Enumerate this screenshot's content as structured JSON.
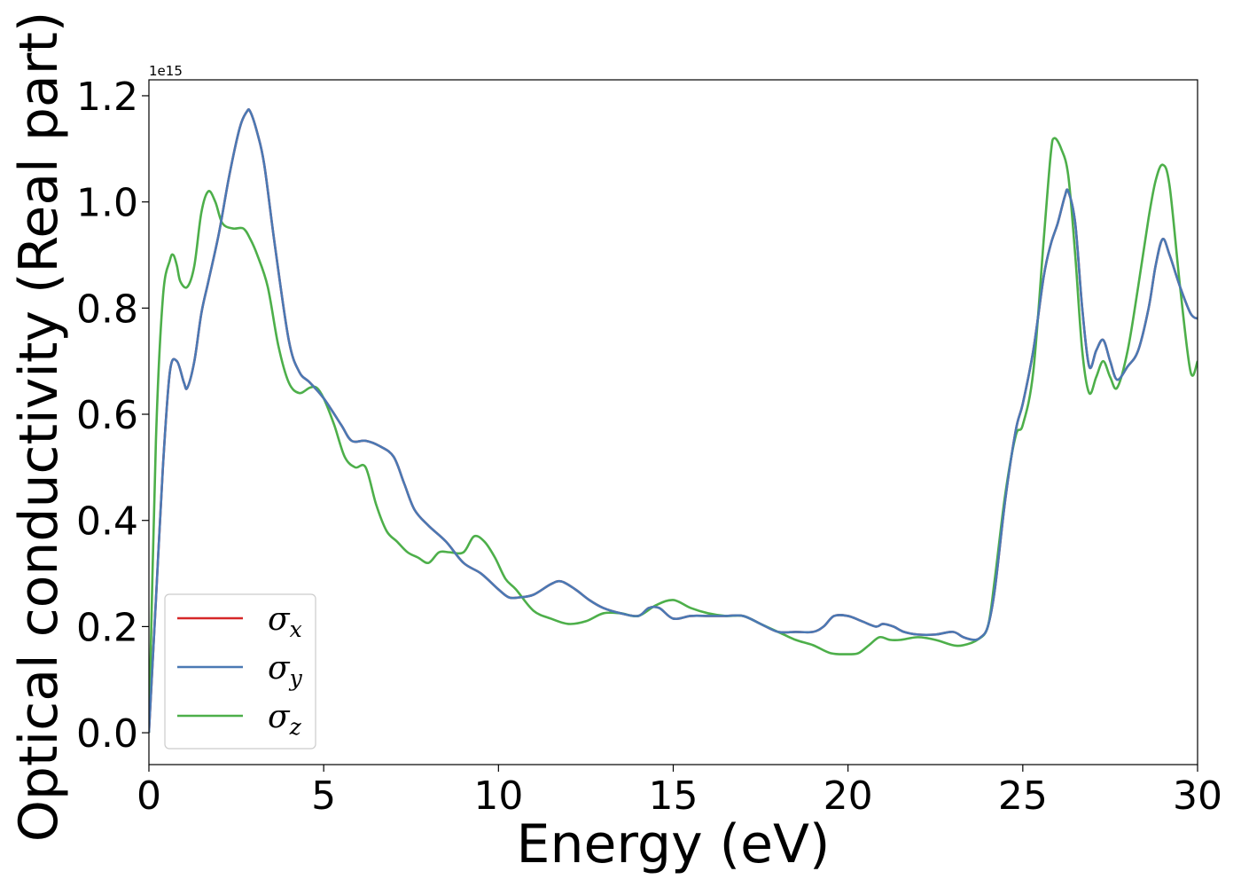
{
  "chart_data": {
    "type": "line",
    "xlabel": "Energy (eV)",
    "ylabel": "Optical conductivity (Real part)",
    "y_offset_text": "1e15",
    "y_scale_factor": 1000000000000000.0,
    "xlim": [
      0,
      30
    ],
    "ylim": [
      -0.06,
      1.23
    ],
    "x_ticks": [
      0,
      5,
      10,
      15,
      20,
      25,
      30
    ],
    "x_tick_labels": [
      "0",
      "5",
      "10",
      "15",
      "20",
      "25",
      "30"
    ],
    "y_ticks": [
      0.0,
      0.2,
      0.4,
      0.6,
      0.8,
      1.0,
      1.2
    ],
    "y_tick_labels": [
      "0.0",
      "0.2",
      "0.4",
      "0.6",
      "0.8",
      "1.0",
      "1.2"
    ],
    "grid": false,
    "legend_position": "lower-left",
    "series": [
      {
        "name": "σx",
        "symbol": "σ",
        "subscript": "x",
        "color": "#d62728",
        "x": [
          0,
          0.2,
          0.4,
          0.6,
          0.8,
          1.0,
          1.1,
          1.3,
          1.5,
          1.7,
          2.0,
          2.3,
          2.6,
          2.8,
          2.9,
          3.1,
          3.3,
          3.6,
          4.0,
          4.3,
          4.6,
          5.0,
          5.5,
          5.8,
          6.2,
          6.6,
          7.0,
          7.3,
          7.6,
          8.0,
          8.5,
          9.0,
          9.5,
          10.0,
          10.3,
          10.6,
          11.0,
          11.5,
          11.8,
          12.2,
          12.6,
          13.0,
          13.5,
          14.0,
          14.3,
          14.6,
          15.0,
          15.5,
          16.0,
          16.5,
          17.0,
          17.5,
          18.0,
          18.5,
          19.0,
          19.3,
          19.6,
          20.0,
          20.4,
          20.8,
          21.0,
          21.3,
          21.6,
          22.0,
          22.5,
          23.0,
          23.3,
          23.6,
          23.8,
          24.0,
          24.2,
          24.5,
          24.8,
          25.0,
          25.3,
          25.6,
          25.8,
          26.0,
          26.2,
          26.3,
          26.5,
          26.7,
          26.9,
          27.1,
          27.3,
          27.5,
          27.7,
          28.0,
          28.3,
          28.6,
          28.8,
          29.0,
          29.2,
          29.5,
          29.8,
          30.0
        ],
        "values": [
          0.0,
          0.25,
          0.5,
          0.68,
          0.7,
          0.66,
          0.65,
          0.7,
          0.79,
          0.85,
          0.94,
          1.05,
          1.14,
          1.17,
          1.17,
          1.13,
          1.07,
          0.92,
          0.74,
          0.68,
          0.66,
          0.63,
          0.58,
          0.55,
          0.55,
          0.54,
          0.52,
          0.47,
          0.42,
          0.39,
          0.36,
          0.32,
          0.3,
          0.27,
          0.255,
          0.255,
          0.26,
          0.28,
          0.285,
          0.27,
          0.25,
          0.235,
          0.225,
          0.22,
          0.235,
          0.235,
          0.215,
          0.22,
          0.22,
          0.22,
          0.22,
          0.205,
          0.19,
          0.19,
          0.19,
          0.2,
          0.22,
          0.22,
          0.21,
          0.2,
          0.205,
          0.2,
          0.19,
          0.185,
          0.185,
          0.19,
          0.18,
          0.175,
          0.18,
          0.2,
          0.27,
          0.44,
          0.57,
          0.62,
          0.72,
          0.86,
          0.92,
          0.96,
          1.01,
          1.02,
          0.96,
          0.8,
          0.69,
          0.72,
          0.74,
          0.7,
          0.665,
          0.69,
          0.72,
          0.8,
          0.88,
          0.93,
          0.9,
          0.84,
          0.79,
          0.78
        ]
      },
      {
        "name": "σy",
        "symbol": "σ",
        "subscript": "y",
        "color": "#4a79b4",
        "x": [
          0,
          0.2,
          0.4,
          0.6,
          0.8,
          1.0,
          1.1,
          1.3,
          1.5,
          1.7,
          2.0,
          2.3,
          2.6,
          2.8,
          2.9,
          3.1,
          3.3,
          3.6,
          4.0,
          4.3,
          4.6,
          5.0,
          5.5,
          5.8,
          6.2,
          6.6,
          7.0,
          7.3,
          7.6,
          8.0,
          8.5,
          9.0,
          9.5,
          10.0,
          10.3,
          10.6,
          11.0,
          11.5,
          11.8,
          12.2,
          12.6,
          13.0,
          13.5,
          14.0,
          14.3,
          14.6,
          15.0,
          15.5,
          16.0,
          16.5,
          17.0,
          17.5,
          18.0,
          18.5,
          19.0,
          19.3,
          19.6,
          20.0,
          20.4,
          20.8,
          21.0,
          21.3,
          21.6,
          22.0,
          22.5,
          23.0,
          23.3,
          23.6,
          23.8,
          24.0,
          24.2,
          24.5,
          24.8,
          25.0,
          25.3,
          25.6,
          25.8,
          26.0,
          26.2,
          26.3,
          26.5,
          26.7,
          26.9,
          27.1,
          27.3,
          27.5,
          27.7,
          28.0,
          28.3,
          28.6,
          28.8,
          29.0,
          29.2,
          29.5,
          29.8,
          30.0
        ],
        "values": [
          0.0,
          0.25,
          0.5,
          0.68,
          0.7,
          0.66,
          0.65,
          0.7,
          0.79,
          0.85,
          0.94,
          1.05,
          1.14,
          1.17,
          1.17,
          1.13,
          1.07,
          0.92,
          0.74,
          0.68,
          0.66,
          0.63,
          0.58,
          0.55,
          0.55,
          0.54,
          0.52,
          0.47,
          0.42,
          0.39,
          0.36,
          0.32,
          0.3,
          0.27,
          0.255,
          0.255,
          0.26,
          0.28,
          0.285,
          0.27,
          0.25,
          0.235,
          0.225,
          0.22,
          0.235,
          0.235,
          0.215,
          0.22,
          0.22,
          0.22,
          0.22,
          0.205,
          0.19,
          0.19,
          0.19,
          0.2,
          0.22,
          0.22,
          0.21,
          0.2,
          0.205,
          0.2,
          0.19,
          0.185,
          0.185,
          0.19,
          0.18,
          0.175,
          0.18,
          0.2,
          0.27,
          0.44,
          0.57,
          0.62,
          0.72,
          0.86,
          0.92,
          0.96,
          1.01,
          1.02,
          0.96,
          0.8,
          0.69,
          0.72,
          0.74,
          0.7,
          0.665,
          0.69,
          0.72,
          0.8,
          0.88,
          0.93,
          0.9,
          0.84,
          0.79,
          0.78
        ]
      },
      {
        "name": "σz",
        "symbol": "σ",
        "subscript": "z",
        "color": "#4daf4a",
        "x": [
          0,
          0.2,
          0.4,
          0.6,
          0.7,
          0.8,
          0.9,
          1.1,
          1.3,
          1.5,
          1.7,
          1.9,
          2.1,
          2.4,
          2.7,
          2.9,
          3.1,
          3.4,
          3.7,
          4.0,
          4.3,
          4.6,
          4.8,
          5.0,
          5.3,
          5.6,
          5.9,
          6.2,
          6.5,
          6.8,
          7.1,
          7.4,
          7.7,
          8.0,
          8.3,
          8.6,
          9.0,
          9.3,
          9.6,
          9.9,
          10.2,
          10.5,
          11.0,
          11.5,
          12.0,
          12.5,
          13.0,
          13.5,
          14.0,
          14.5,
          15.0,
          15.5,
          16.0,
          16.5,
          17.0,
          17.5,
          18.0,
          18.5,
          19.0,
          19.5,
          20.0,
          20.3,
          20.6,
          20.9,
          21.2,
          21.5,
          22.0,
          22.5,
          23.0,
          23.3,
          23.7,
          24.0,
          24.2,
          24.5,
          24.8,
          25.0,
          25.3,
          25.6,
          25.8,
          25.9,
          26.1,
          26.3,
          26.5,
          26.7,
          26.9,
          27.1,
          27.3,
          27.5,
          27.7,
          28.0,
          28.3,
          28.6,
          28.8,
          29.0,
          29.2,
          29.5,
          29.8,
          30.0
        ],
        "values": [
          0.0,
          0.55,
          0.82,
          0.89,
          0.9,
          0.88,
          0.85,
          0.84,
          0.88,
          0.98,
          1.02,
          1.0,
          0.96,
          0.95,
          0.95,
          0.93,
          0.9,
          0.84,
          0.73,
          0.66,
          0.64,
          0.65,
          0.65,
          0.63,
          0.58,
          0.52,
          0.5,
          0.5,
          0.43,
          0.38,
          0.36,
          0.34,
          0.33,
          0.32,
          0.34,
          0.34,
          0.34,
          0.37,
          0.36,
          0.33,
          0.29,
          0.27,
          0.23,
          0.215,
          0.205,
          0.21,
          0.225,
          0.225,
          0.22,
          0.24,
          0.25,
          0.235,
          0.225,
          0.22,
          0.22,
          0.205,
          0.19,
          0.175,
          0.165,
          0.15,
          0.148,
          0.15,
          0.165,
          0.18,
          0.175,
          0.175,
          0.18,
          0.175,
          0.165,
          0.165,
          0.175,
          0.2,
          0.29,
          0.45,
          0.56,
          0.58,
          0.68,
          0.93,
          1.09,
          1.12,
          1.1,
          1.05,
          0.9,
          0.72,
          0.64,
          0.67,
          0.7,
          0.67,
          0.65,
          0.72,
          0.84,
          0.97,
          1.04,
          1.07,
          1.03,
          0.84,
          0.68,
          0.7
        ]
      }
    ]
  }
}
